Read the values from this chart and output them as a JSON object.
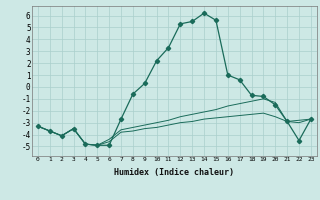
{
  "xlabel": "Humidex (Indice chaleur)",
  "x": [
    0,
    1,
    2,
    3,
    4,
    5,
    6,
    7,
    8,
    9,
    10,
    11,
    12,
    13,
    14,
    15,
    16,
    17,
    18,
    19,
    20,
    21,
    22,
    23
  ],
  "line1": [
    -3.3,
    -3.7,
    -4.1,
    -3.5,
    -4.8,
    -4.9,
    -4.9,
    -2.7,
    -0.6,
    0.3,
    2.2,
    3.3,
    5.3,
    5.5,
    6.2,
    5.6,
    1.0,
    0.6,
    -0.7,
    -0.8,
    -1.5,
    -2.9,
    -4.5,
    -2.7
  ],
  "line2": [
    -3.3,
    -3.7,
    -4.1,
    -3.5,
    -4.8,
    -4.9,
    -4.4,
    -3.6,
    -3.4,
    -3.2,
    -3.0,
    -2.8,
    -2.5,
    -2.3,
    -2.1,
    -1.9,
    -1.6,
    -1.4,
    -1.2,
    -1.0,
    -1.3,
    -2.9,
    -2.8,
    -2.7
  ],
  "line3": [
    -3.3,
    -3.7,
    -4.1,
    -3.5,
    -4.8,
    -4.9,
    -4.6,
    -3.8,
    -3.7,
    -3.5,
    -3.4,
    -3.2,
    -3.0,
    -2.9,
    -2.7,
    -2.6,
    -2.5,
    -2.4,
    -2.3,
    -2.2,
    -2.5,
    -2.9,
    -3.0,
    -2.7
  ],
  "line_color": "#1a6b5a",
  "bg_color": "#cde8e5",
  "grid_color": "#aacfcc",
  "ylim": [
    -5.8,
    6.8
  ],
  "yticks": [
    -5,
    -4,
    -3,
    -2,
    -1,
    0,
    1,
    2,
    3,
    4,
    5,
    6
  ],
  "xlim": [
    -0.5,
    23.5
  ]
}
